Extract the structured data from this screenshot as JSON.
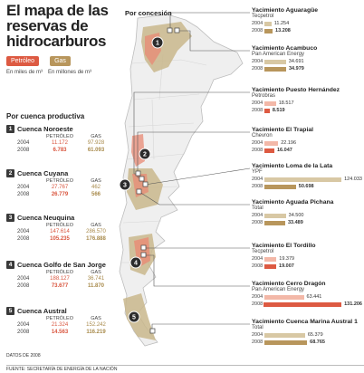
{
  "title": "El mapa de las reservas de hidrocarburos",
  "legend": {
    "petroleo_label": "Petróleo",
    "gas_label": "Gas",
    "petroleo_unit": "En miles de m³",
    "gas_unit": "En millones de m³",
    "colors": {
      "petroleo": "#dd5a42",
      "gas": "#b8965c"
    }
  },
  "map_label": "Por concesión",
  "basins_title": "Por cuenca productiva",
  "table_headers": {
    "petroleo": "PETRÓLEO",
    "gas": "GAS"
  },
  "basins": [
    {
      "num": "1",
      "name": "Cuenca Noroeste",
      "rows": [
        {
          "year": "2004",
          "petroleo": "11.172",
          "gas": "97.928"
        },
        {
          "year": "2008",
          "petroleo": "6.783",
          "gas": "61.093"
        }
      ]
    },
    {
      "num": "2",
      "name": "Cuenca Cuyana",
      "rows": [
        {
          "year": "2004",
          "petroleo": "27.767",
          "gas": "462"
        },
        {
          "year": "2008",
          "petroleo": "26.779",
          "gas": "566"
        }
      ]
    },
    {
      "num": "3",
      "name": "Cuenca Neuquina",
      "rows": [
        {
          "year": "2004",
          "petroleo": "147.614",
          "gas": "286.570"
        },
        {
          "year": "2008",
          "petroleo": "105.235",
          "gas": "176.888"
        }
      ]
    },
    {
      "num": "4",
      "name": "Cuenca Golfo de San Jorge",
      "rows": [
        {
          "year": "2004",
          "petroleo": "188.127",
          "gas": "36.741"
        },
        {
          "year": "2008",
          "petroleo": "73.677",
          "gas": "11.870"
        }
      ]
    },
    {
      "num": "5",
      "name": "Cuenca Austral",
      "rows": [
        {
          "year": "2004",
          "petroleo": "21.324",
          "gas": "152.242"
        },
        {
          "year": "2008",
          "petroleo": "14.563",
          "gas": "116.219"
        }
      ]
    }
  ],
  "data_note": "DATOS DE 2008",
  "source": "FUENTE: SECRETARÍA DE ENERGÍA DE LA NACIÓN",
  "yacimientos": [
    {
      "name": "Yacimiento Aguaragüe",
      "company": "Tecpetrol",
      "type": "gas",
      "v2004": "11.254",
      "v2008": "13.208",
      "n2004": 11254,
      "n2008": 13208
    },
    {
      "name": "Yacimiento Acambuco",
      "company": "Pan American Energy",
      "type": "gas",
      "v2004": "34.691",
      "v2008": "34.979",
      "n2004": 34691,
      "n2008": 34979
    },
    {
      "name": "Yacimiento Puesto Hernández",
      "company": "Petrobras",
      "type": "pet",
      "v2004": "18.517",
      "v2008": "8.519",
      "n2004": 18517,
      "n2008": 8519
    },
    {
      "name": "Yacimiento El Trapial",
      "company": "Chevron",
      "type": "pet",
      "v2004": "22.196",
      "v2008": "16.047",
      "n2004": 22196,
      "n2008": 16047
    },
    {
      "name": "Yacimiento Loma de la Lata",
      "company": "YPF",
      "type": "gas",
      "v2004": "124.033",
      "v2008": "50.698",
      "n2004": 124033,
      "n2008": 50698
    },
    {
      "name": "Yacimiento Aguada Pichana",
      "company": "Total",
      "type": "gas",
      "v2004": "34.500",
      "v2008": "33.489",
      "n2004": 34500,
      "n2008": 33489
    },
    {
      "name": "Yacimiento El Tordillo",
      "company": "Tecpetrol",
      "type": "pet",
      "v2004": "19.379",
      "v2008": "19.007",
      "n2004": 19379,
      "n2008": 19007
    },
    {
      "name": "Yacimiento Cerro Dragón",
      "company": "Pan American Energy",
      "type": "pet",
      "v2004": "63.441",
      "v2008": "131.206",
      "n2004": 63441,
      "n2008": 131206
    },
    {
      "name": "Yacimiento Cuenca Marina Austral 1",
      "company": "Total",
      "type": "gas",
      "v2004": "65.379",
      "v2008": "68.765",
      "n2004": 65379,
      "n2008": 68765
    }
  ]
}
